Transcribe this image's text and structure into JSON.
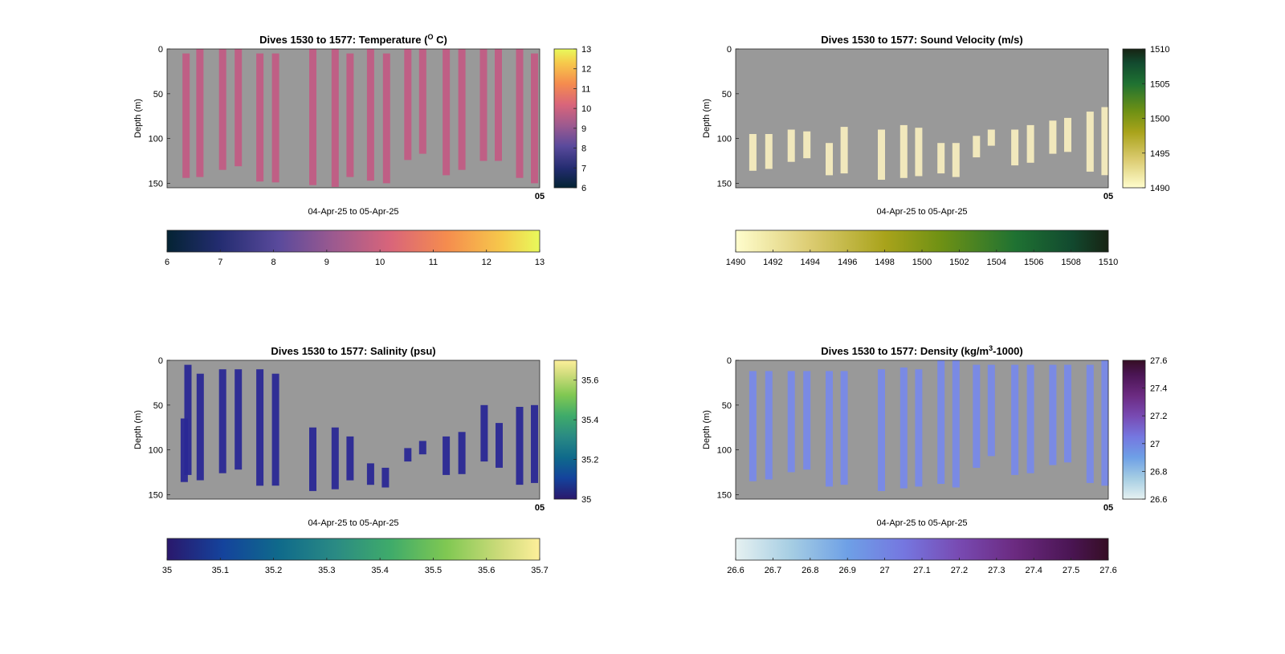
{
  "chart_data": [
    {
      "type": "heatmap",
      "title": "Dives 1530 to 1577: Temperature (",
      "title_sup": "O",
      "title_suffix": " C)",
      "xlabel": "04-Apr-25 to 05-Apr-25",
      "ylabel": "Depth (m)",
      "ylim": [
        0,
        155
      ],
      "yticks": [
        "0",
        "50",
        "100",
        "150"
      ],
      "xtick": "05",
      "colormap": "thermal",
      "clim": [
        6,
        13
      ],
      "colorbar_ticks": [
        "6",
        "7",
        "8",
        "9",
        "10",
        "11",
        "12",
        "13"
      ],
      "hcolorbar_ticks": [
        "6",
        "7",
        "8",
        "9",
        "10",
        "11",
        "12",
        "13"
      ],
      "profile_color": "#c15c84",
      "profiles": [
        {
          "x": 0.05,
          "top": 5,
          "bottom": 144
        },
        {
          "x": 0.087,
          "top": 0,
          "bottom": 143
        },
        {
          "x": 0.148,
          "top": 0,
          "bottom": 135
        },
        {
          "x": 0.19,
          "top": 0,
          "bottom": 131
        },
        {
          "x": 0.248,
          "top": 5,
          "bottom": 148
        },
        {
          "x": 0.29,
          "top": 5,
          "bottom": 149
        },
        {
          "x": 0.39,
          "top": 0,
          "bottom": 152
        },
        {
          "x": 0.45,
          "top": 0,
          "bottom": 154
        },
        {
          "x": 0.49,
          "top": 5,
          "bottom": 143
        },
        {
          "x": 0.545,
          "top": 0,
          "bottom": 147
        },
        {
          "x": 0.588,
          "top": 5,
          "bottom": 150
        },
        {
          "x": 0.645,
          "top": 0,
          "bottom": 124
        },
        {
          "x": 0.685,
          "top": 0,
          "bottom": 117
        },
        {
          "x": 0.748,
          "top": 0,
          "bottom": 141
        },
        {
          "x": 0.79,
          "top": 0,
          "bottom": 135
        },
        {
          "x": 0.848,
          "top": 0,
          "bottom": 125
        },
        {
          "x": 0.888,
          "top": 0,
          "bottom": 125
        },
        {
          "x": 0.945,
          "top": 0,
          "bottom": 144
        },
        {
          "x": 0.985,
          "top": 5,
          "bottom": 150
        }
      ]
    },
    {
      "type": "heatmap",
      "title": "Dives 1530 to 1577: Sound Velocity (m/s)",
      "title_sup": "",
      "title_suffix": "",
      "xlabel": "04-Apr-25 to 05-Apr-25",
      "ylabel": "Depth (m)",
      "ylim": [
        0,
        155
      ],
      "yticks": [
        "0",
        "50",
        "100",
        "150"
      ],
      "xtick": "05",
      "colormap": "speed",
      "clim": [
        1490,
        1510
      ],
      "colorbar_ticks": [
        "1490",
        "1495",
        "1500",
        "1505",
        "1510"
      ],
      "hcolorbar_ticks": [
        "1490",
        "1492",
        "1494",
        "1496",
        "1498",
        "1500",
        "1502",
        "1504",
        "1506",
        "1508",
        "1510"
      ],
      "profile_color": "#f6ecbe",
      "profiles": [
        {
          "x": 0.045,
          "top": 95,
          "bottom": 136
        },
        {
          "x": 0.088,
          "top": 95,
          "bottom": 134
        },
        {
          "x": 0.148,
          "top": 90,
          "bottom": 126
        },
        {
          "x": 0.19,
          "top": 92,
          "bottom": 122
        },
        {
          "x": 0.25,
          "top": 105,
          "bottom": 141
        },
        {
          "x": 0.29,
          "top": 87,
          "bottom": 139
        },
        {
          "x": 0.39,
          "top": 90,
          "bottom": 146
        },
        {
          "x": 0.45,
          "top": 85,
          "bottom": 144
        },
        {
          "x": 0.49,
          "top": 88,
          "bottom": 142
        },
        {
          "x": 0.55,
          "top": 105,
          "bottom": 139
        },
        {
          "x": 0.59,
          "top": 105,
          "bottom": 143
        },
        {
          "x": 0.645,
          "top": 97,
          "bottom": 121
        },
        {
          "x": 0.685,
          "top": 90,
          "bottom": 108
        },
        {
          "x": 0.748,
          "top": 90,
          "bottom": 130
        },
        {
          "x": 0.79,
          "top": 85,
          "bottom": 127
        },
        {
          "x": 0.85,
          "top": 80,
          "bottom": 117
        },
        {
          "x": 0.89,
          "top": 77,
          "bottom": 115
        },
        {
          "x": 0.95,
          "top": 70,
          "bottom": 137
        },
        {
          "x": 0.99,
          "top": 65,
          "bottom": 141
        }
      ]
    },
    {
      "type": "heatmap",
      "title": "Dives 1530 to 1577: Salinity (psu)",
      "title_sup": "",
      "title_suffix": "",
      "xlabel": "04-Apr-25 to 05-Apr-25",
      "ylabel": "Depth (m)",
      "ylim": [
        0,
        155
      ],
      "yticks": [
        "0",
        "50",
        "100",
        "150"
      ],
      "xtick": "05",
      "colormap": "haline",
      "clim": [
        35,
        35.7
      ],
      "colorbar_ticks": [
        "35",
        "35.2",
        "35.4",
        "35.6"
      ],
      "hcolorbar_ticks": [
        "35",
        "35.1",
        "35.2",
        "35.3",
        "35.4",
        "35.5",
        "35.6",
        "35.7"
      ],
      "profile_color": "#2a2895",
      "profiles": [
        {
          "x": 0.045,
          "top": 65,
          "bottom": 136
        },
        {
          "x": 0.055,
          "top": 5,
          "bottom": 128
        },
        {
          "x": 0.088,
          "top": 15,
          "bottom": 134
        },
        {
          "x": 0.148,
          "top": 10,
          "bottom": 126
        },
        {
          "x": 0.19,
          "top": 10,
          "bottom": 122
        },
        {
          "x": 0.248,
          "top": 10,
          "bottom": 140
        },
        {
          "x": 0.29,
          "top": 15,
          "bottom": 140
        },
        {
          "x": 0.39,
          "top": 75,
          "bottom": 146
        },
        {
          "x": 0.45,
          "top": 75,
          "bottom": 144
        },
        {
          "x": 0.49,
          "top": 85,
          "bottom": 134
        },
        {
          "x": 0.545,
          "top": 115,
          "bottom": 139
        },
        {
          "x": 0.585,
          "top": 120,
          "bottom": 142
        },
        {
          "x": 0.645,
          "top": 98,
          "bottom": 113
        },
        {
          "x": 0.685,
          "top": 90,
          "bottom": 105
        },
        {
          "x": 0.748,
          "top": 85,
          "bottom": 128
        },
        {
          "x": 0.79,
          "top": 80,
          "bottom": 127
        },
        {
          "x": 0.85,
          "top": 50,
          "bottom": 113
        },
        {
          "x": 0.89,
          "top": 70,
          "bottom": 120
        },
        {
          "x": 0.945,
          "top": 52,
          "bottom": 139
        },
        {
          "x": 0.985,
          "top": 50,
          "bottom": 137
        }
      ]
    },
    {
      "type": "heatmap",
      "title": "Dives 1530 to 1577: Density (kg/m",
      "title_sup": "3",
      "title_suffix": "-1000)",
      "xlabel": "04-Apr-25 to 05-Apr-25",
      "ylabel": "Depth (m)",
      "ylim": [
        0,
        155
      ],
      "yticks": [
        "0",
        "50",
        "100",
        "150"
      ],
      "xtick": "05",
      "colormap": "dense",
      "clim": [
        26.6,
        27.6
      ],
      "colorbar_ticks": [
        "26.6",
        "26.8",
        "27",
        "27.2",
        "27.4",
        "27.6"
      ],
      "hcolorbar_ticks": [
        "26.6",
        "26.7",
        "26.8",
        "26.9",
        "27",
        "27.1",
        "27.2",
        "27.3",
        "27.4",
        "27.5",
        "27.6"
      ],
      "profile_color": "#7889e8",
      "profiles": [
        {
          "x": 0.045,
          "top": 12,
          "bottom": 135
        },
        {
          "x": 0.088,
          "top": 12,
          "bottom": 133
        },
        {
          "x": 0.148,
          "top": 12,
          "bottom": 125
        },
        {
          "x": 0.19,
          "top": 12,
          "bottom": 122
        },
        {
          "x": 0.25,
          "top": 12,
          "bottom": 141
        },
        {
          "x": 0.29,
          "top": 12,
          "bottom": 139
        },
        {
          "x": 0.39,
          "top": 10,
          "bottom": 146
        },
        {
          "x": 0.45,
          "top": 8,
          "bottom": 143
        },
        {
          "x": 0.49,
          "top": 10,
          "bottom": 141
        },
        {
          "x": 0.55,
          "top": 0,
          "bottom": 138
        },
        {
          "x": 0.59,
          "top": 0,
          "bottom": 142
        },
        {
          "x": 0.645,
          "top": 5,
          "bottom": 120
        },
        {
          "x": 0.685,
          "top": 5,
          "bottom": 107
        },
        {
          "x": 0.748,
          "top": 5,
          "bottom": 128
        },
        {
          "x": 0.79,
          "top": 5,
          "bottom": 126
        },
        {
          "x": 0.85,
          "top": 5,
          "bottom": 117
        },
        {
          "x": 0.89,
          "top": 5,
          "bottom": 114
        },
        {
          "x": 0.95,
          "top": 5,
          "bottom": 137
        },
        {
          "x": 0.99,
          "top": 0,
          "bottom": 140
        }
      ]
    }
  ]
}
